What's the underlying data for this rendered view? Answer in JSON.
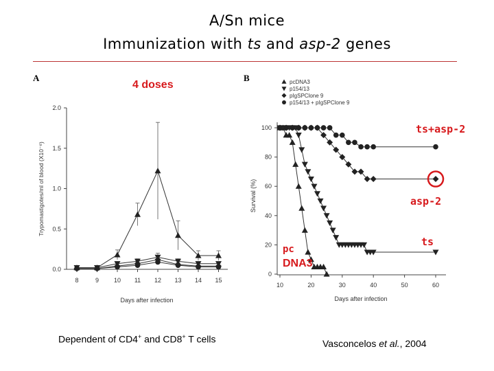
{
  "title_line1": "A/Sn mice",
  "title_line2_parts": [
    "Immunization with ",
    "ts",
    " and ",
    "asp-2",
    " genes"
  ],
  "panel_a_letter": "A",
  "panel_b_letter": "B",
  "doses_note": "4 doses",
  "caption_left": {
    "text": "Dependent of CD4",
    "sup1": "+",
    "mid": " and CD8",
    "sup2": "+",
    "end": " T cells"
  },
  "caption_right": {
    "pre": "Vasconcelos ",
    "em": "et al.",
    "post": ", 2004"
  },
  "annotations": {
    "ts_asp2": "ts+asp-2",
    "asp2": "asp-2",
    "ts": "ts",
    "pc": "pc",
    "dna3": "DNA3"
  },
  "chart_data": [
    {
      "type": "line",
      "panel": "A",
      "xlabel": "Days after infection",
      "ylabel": "Trypomastigotes/ml of blood (X10⁻⁶)",
      "x": [
        8,
        9,
        10,
        11,
        12,
        13,
        14,
        15
      ],
      "ylim": [
        0,
        2.0
      ],
      "yticks": [
        "0.0",
        "0.5",
        "1.0",
        "1.5",
        "2.0"
      ],
      "series": [
        {
          "marker": "triangle-up",
          "values": [
            0.02,
            0.02,
            0.18,
            0.68,
            1.22,
            0.42,
            0.17,
            0.17
          ],
          "err": [
            0,
            0,
            0.06,
            0.14,
            0.6,
            0.18,
            0.06,
            0.06
          ]
        },
        {
          "marker": "triangle-down",
          "values": [
            0.02,
            0.02,
            0.07,
            0.1,
            0.15,
            0.1,
            0.07,
            0.07
          ],
          "err": [
            0,
            0,
            0.02,
            0.03,
            0.05,
            0.03,
            0.02,
            0.02
          ]
        },
        {
          "marker": "diamond",
          "values": [
            0.01,
            0.01,
            0.04,
            0.07,
            0.12,
            0.06,
            0.04,
            0.04
          ],
          "err": [
            0,
            0,
            0.01,
            0.02,
            0.03,
            0.02,
            0.01,
            0.01
          ]
        },
        {
          "marker": "circle",
          "values": [
            0.01,
            0.01,
            0.03,
            0.05,
            0.09,
            0.05,
            0.03,
            0.03
          ],
          "err": [
            0,
            0,
            0.01,
            0.02,
            0.02,
            0.02,
            0.01,
            0.01
          ]
        }
      ]
    },
    {
      "type": "line",
      "panel": "B",
      "xlabel": "Days after infection",
      "ylabel": "Survival (%)",
      "xlim": [
        10,
        60
      ],
      "xticks": [
        10,
        20,
        30,
        40,
        50,
        60
      ],
      "ylim": [
        0,
        100
      ],
      "yticks": [
        0,
        20,
        40,
        60,
        80,
        100
      ],
      "legend_position": "top-left",
      "series": [
        {
          "name": "pcDNA3",
          "marker": "triangle-up",
          "x": [
            10,
            11,
            12,
            13,
            14,
            15,
            16,
            17,
            18,
            19,
            20,
            21,
            22,
            23,
            24,
            25
          ],
          "values": [
            100,
            100,
            95,
            95,
            90,
            75,
            60,
            45,
            30,
            15,
            10,
            5,
            5,
            5,
            5,
            0
          ]
        },
        {
          "name": "p154/13",
          "marker": "triangle-down",
          "x": [
            10,
            11,
            12,
            13,
            14,
            15,
            16,
            17,
            18,
            19,
            20,
            21,
            22,
            23,
            24,
            25,
            26,
            27,
            28,
            29,
            30,
            31,
            32,
            33,
            34,
            35,
            36,
            37,
            38,
            39,
            40,
            60
          ],
          "values": [
            100,
            100,
            100,
            100,
            100,
            100,
            95,
            85,
            75,
            70,
            65,
            60,
            55,
            50,
            45,
            40,
            35,
            30,
            25,
            20,
            20,
            20,
            20,
            20,
            20,
            20,
            20,
            20,
            15,
            15,
            15,
            15
          ]
        },
        {
          "name": "pIgSPClone 9",
          "marker": "diamond",
          "x": [
            10,
            12,
            14,
            16,
            18,
            20,
            22,
            24,
            26,
            28,
            30,
            32,
            34,
            36,
            38,
            40,
            60
          ],
          "values": [
            100,
            100,
            100,
            100,
            100,
            100,
            100,
            95,
            90,
            85,
            80,
            75,
            70,
            70,
            65,
            65,
            65
          ]
        },
        {
          "name": "p154/13 + pIgSPClone 9",
          "marker": "circle",
          "x": [
            10,
            12,
            14,
            16,
            18,
            20,
            22,
            24,
            26,
            28,
            30,
            32,
            34,
            36,
            38,
            40,
            60
          ],
          "values": [
            100,
            100,
            100,
            100,
            100,
            100,
            100,
            100,
            100,
            95,
            95,
            90,
            90,
            87,
            87,
            87,
            87
          ]
        }
      ]
    }
  ]
}
